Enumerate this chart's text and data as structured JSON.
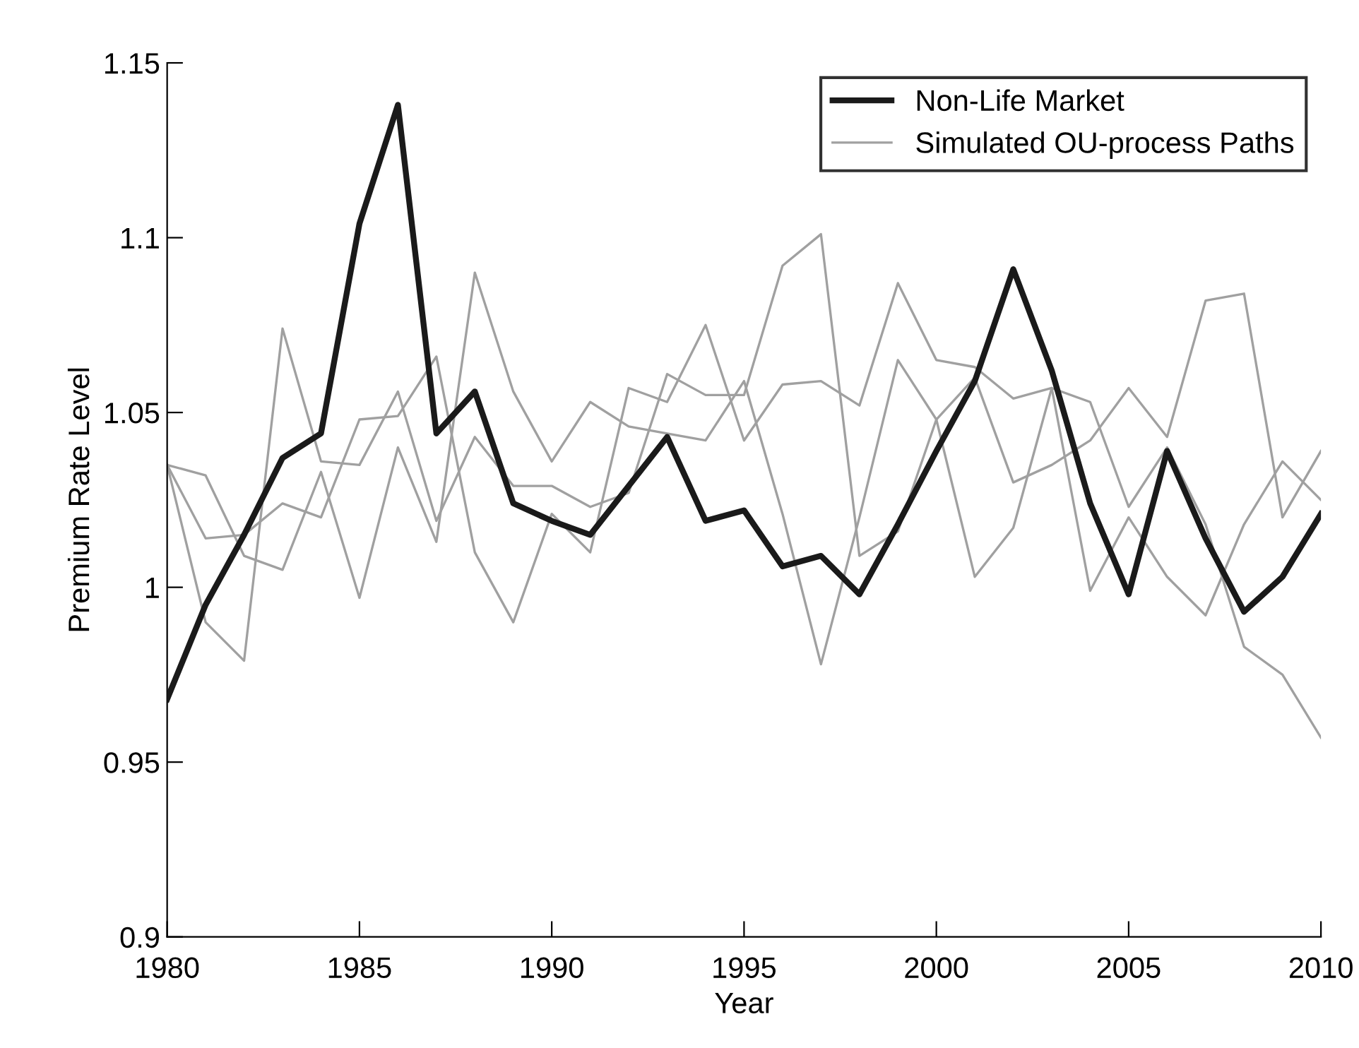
{
  "chart_data": {
    "type": "line",
    "xlabel": "Year",
    "ylabel": "Premium Rate Level",
    "x": [
      1980,
      1981,
      1982,
      1983,
      1984,
      1985,
      1986,
      1987,
      1988,
      1989,
      1990,
      1991,
      1992,
      1993,
      1994,
      1995,
      1996,
      1997,
      1998,
      1999,
      2000,
      2001,
      2002,
      2003,
      2004,
      2005,
      2006,
      2007,
      2008,
      2009,
      2010
    ],
    "series": [
      {
        "name": "Non-Life Market",
        "color": "#1a1a1a",
        "values": [
          0.968,
          0.995,
          1.015,
          1.037,
          1.044,
          1.104,
          1.138,
          1.044,
          1.056,
          1.024,
          1.019,
          1.015,
          1.029,
          1.043,
          1.019,
          1.022,
          1.006,
          1.009,
          0.998,
          1.018,
          1.039,
          1.059,
          1.091,
          1.062,
          1.024,
          0.998,
          1.039,
          1.014,
          0.993,
          1.003,
          1.021
        ]
      },
      {
        "name": "Simulated OU-process Paths",
        "color": "#a0a0a0",
        "values": [
          1.035,
          1.032,
          1.009,
          1.005,
          1.033,
          0.997,
          1.04,
          1.013,
          1.09,
          1.056,
          1.036,
          1.053,
          1.046,
          1.044,
          1.042,
          1.059,
          1.021,
          0.978,
          1.02,
          1.065,
          1.048,
          1.06,
          1.03,
          1.035,
          1.042,
          1.057,
          1.043,
          1.082,
          1.084,
          1.02,
          1.039
        ]
      },
      {
        "color": "#a0a0a0",
        "values": [
          1.035,
          0.99,
          0.979,
          1.074,
          1.036,
          1.035,
          1.056,
          1.019,
          1.043,
          1.029,
          1.029,
          1.023,
          1.027,
          1.061,
          1.055,
          1.055,
          1.092,
          1.101,
          1.009,
          1.016,
          1.048,
          1.003,
          1.017,
          1.057,
          1.053,
          1.023,
          1.04,
          1.018,
          0.983,
          0.975,
          0.957
        ]
      },
      {
        "color": "#a0a0a0",
        "values": [
          1.035,
          1.014,
          1.015,
          1.024,
          1.02,
          1.048,
          1.049,
          1.066,
          1.01,
          0.99,
          1.021,
          1.01,
          1.057,
          1.053,
          1.075,
          1.042,
          1.058,
          1.059,
          1.052,
          1.087,
          1.065,
          1.063,
          1.054,
          1.057,
          0.999,
          1.02,
          1.003,
          0.992,
          1.018,
          1.036,
          1.025
        ]
      }
    ],
    "xlim": [
      1980,
      2010
    ],
    "xticks": [
      1980,
      1985,
      1990,
      1995,
      2000,
      2005,
      2010
    ],
    "ylim": [
      0.9,
      1.15
    ],
    "yticks": [
      0.9,
      0.95,
      1,
      1.05,
      1.1,
      1.15
    ],
    "legend": "top right",
    "grid": false,
    "marker": "none",
    "line_style": "solid"
  }
}
